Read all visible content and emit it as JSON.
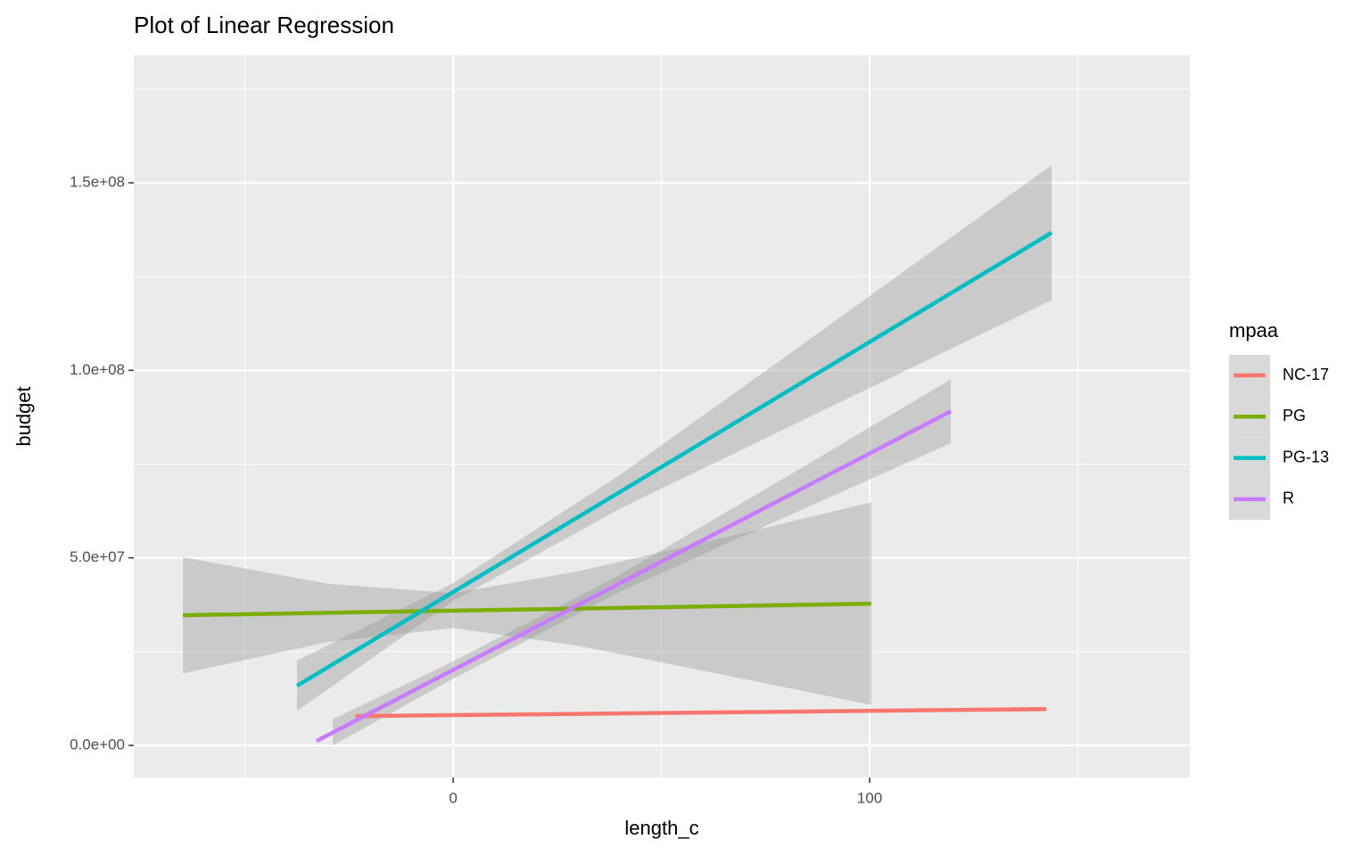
{
  "chart_data": {
    "type": "line",
    "title": "Plot of Linear Regression",
    "x_label": "length_c",
    "y_label": "budget",
    "legend_title": "mpaa",
    "xlim": [
      -76.7,
      176.9
    ],
    "ylim": [
      -8560000,
      184000000
    ],
    "xticks": [
      0,
      100
    ],
    "yticks": [
      {
        "value": 0,
        "label": "0.0e+00"
      },
      {
        "value": 50000000,
        "label": "5.0e+07"
      },
      {
        "value": 100000000,
        "label": "1.0e+08"
      },
      {
        "value": 150000000,
        "label": "1.5e+08"
      }
    ],
    "x_minor_grid": [
      -50,
      50,
      150
    ],
    "y_minor_grid": [
      25000000,
      75000000,
      125000000,
      175000000
    ],
    "grid": true,
    "series": [
      {
        "name": "NC-17",
        "color": "#F8766D",
        "x": [
          -23.5,
          142.4
        ],
        "values": [
          7800000,
          9700000
        ]
      },
      {
        "name": "PG",
        "color": "#7CAE00",
        "x": [
          -64.9,
          100.4
        ],
        "values": [
          34700000,
          37800000
        ],
        "band": {
          "x": [
            -64.9,
            -30,
            0,
            30,
            65,
            100.4
          ],
          "lower": [
            19200000,
            27600000,
            31300000,
            26600000,
            18800000,
            10800000
          ],
          "upper": [
            50200000,
            43100000,
            40600000,
            46400000,
            55400000,
            64800000
          ]
        }
      },
      {
        "name": "PG-13",
        "color": "#00BFC4",
        "x": [
          -37.5,
          143.7
        ],
        "values": [
          15900000,
          136700000
        ],
        "band": {
          "x": [
            -37.5,
            0,
            40,
            80,
            120,
            143.7
          ],
          "lower": [
            9200000,
            38500000,
            63100000,
            84600000,
            106000000,
            118700000
          ],
          "upper": [
            22600000,
            43300000,
            72100000,
            103800000,
            135800000,
            154700000
          ]
        }
      },
      {
        "name": "R",
        "color": "#C77CFF",
        "x": [
          -32.8,
          119.5
        ],
        "values": [
          1200000,
          89100000
        ],
        "band": {
          "x": [
            -28.9,
            0,
            40,
            80,
            119.5
          ],
          "lower": [
            0,
            17800000,
            40900000,
            61000000,
            80600000
          ],
          "upper": [
            7000000,
            22400000,
            45500000,
            71600000,
            97600000
          ]
        }
      }
    ]
  }
}
